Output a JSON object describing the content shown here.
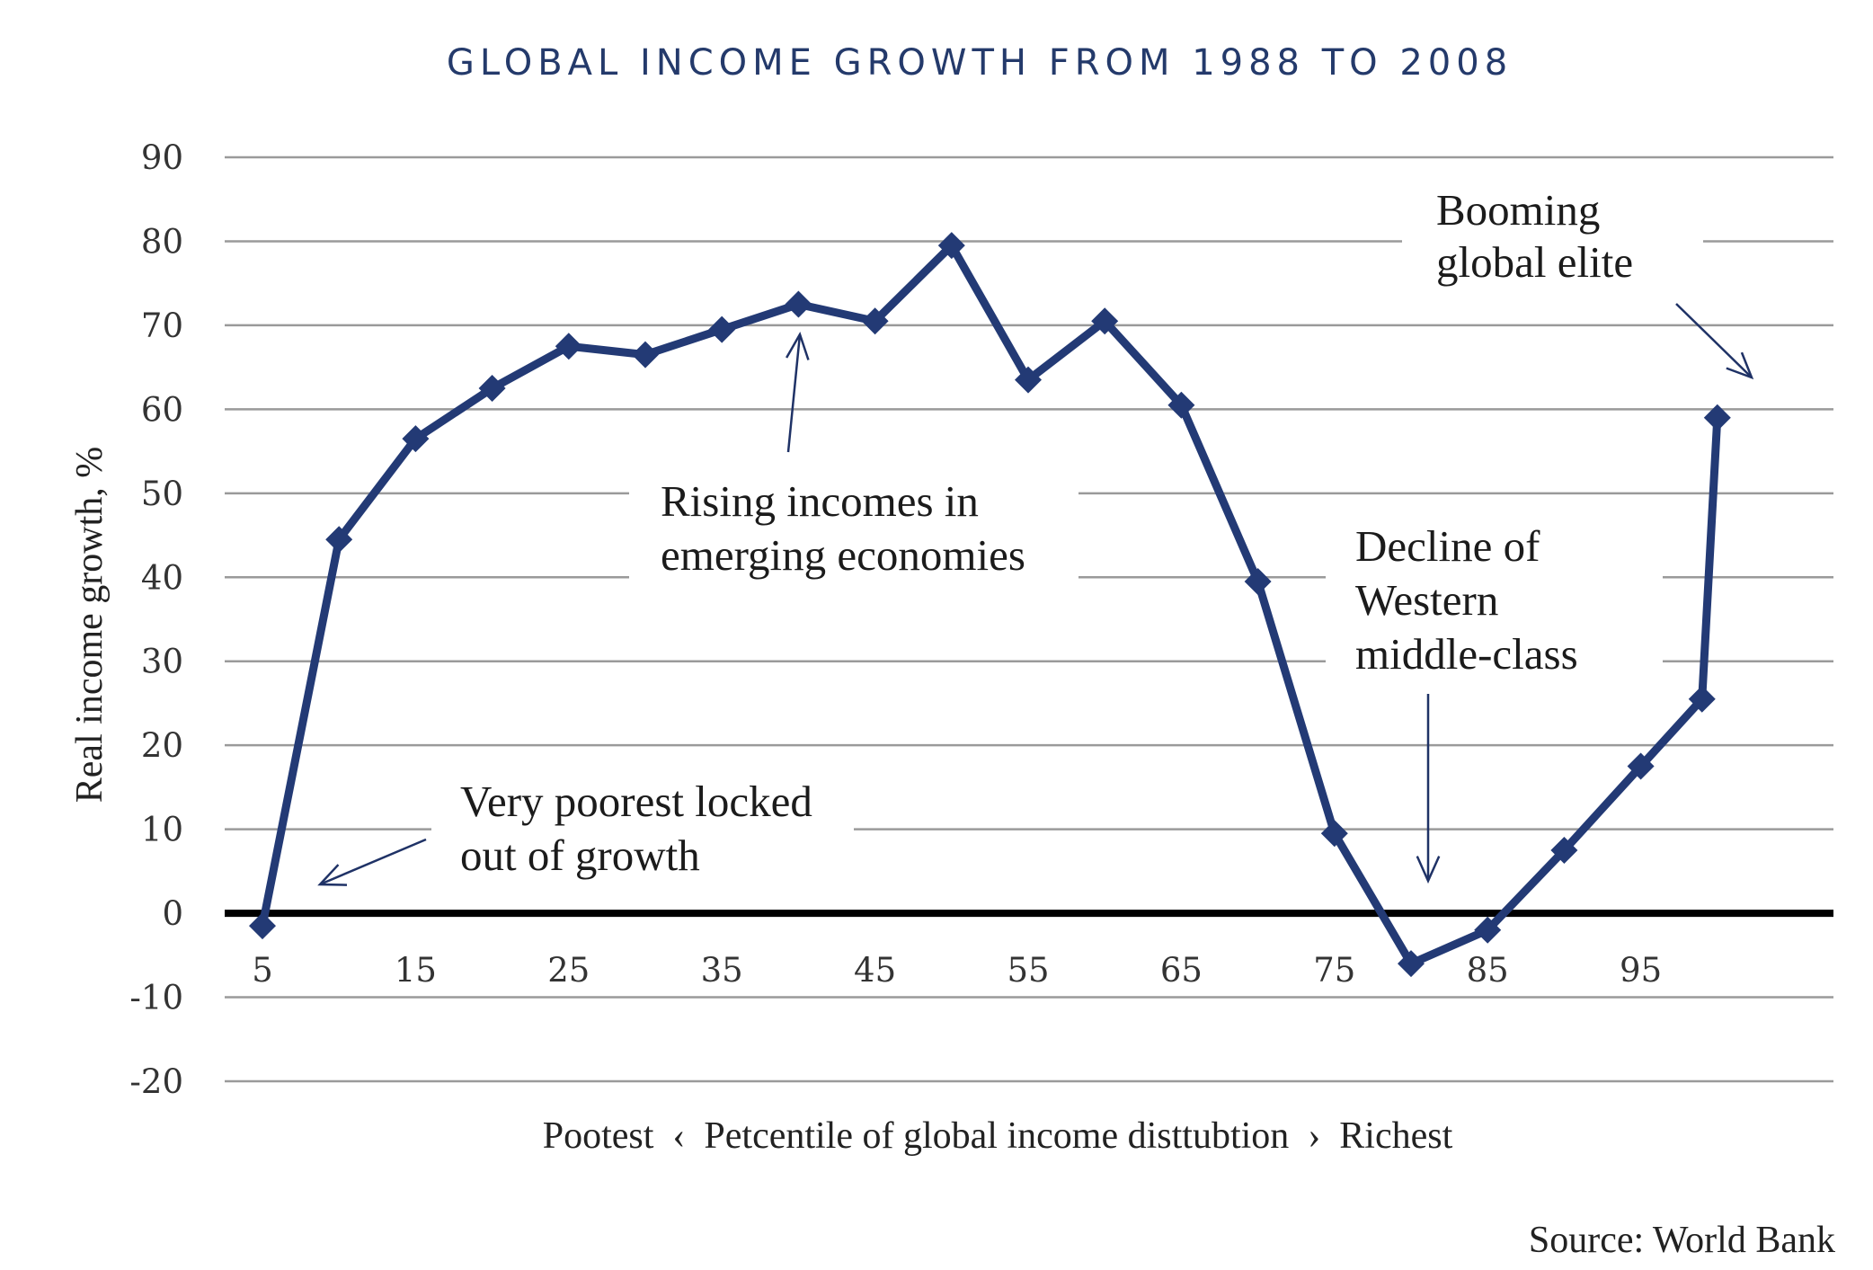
{
  "chart_data": {
    "type": "line",
    "title": "GLOBAL INCOME GROWTH FROM 1988 TO 2008",
    "xlabel": "Pootest  ‹  Petcentile of global income disttubtion  ›  Richest",
    "ylabel": "Real income growth, %",
    "ylim": [
      -20,
      90
    ],
    "yticks": [
      90,
      80,
      70,
      60,
      50,
      40,
      30,
      20,
      10,
      0,
      -10,
      -20
    ],
    "xticks": [
      "5",
      "15",
      "25",
      "35",
      "45",
      "55",
      "65",
      "75",
      "85",
      "95"
    ],
    "grid": true,
    "series": [
      {
        "color": "#233a75",
        "marker": "diamond",
        "x": [
          5,
          10,
          15,
          20,
          25,
          30,
          35,
          40,
          45,
          50,
          55,
          60,
          65,
          70,
          75,
          80,
          85,
          90,
          95,
          99,
          100
        ],
        "y": [
          -1.5,
          44.5,
          56.5,
          62.5,
          67.5,
          66.5,
          69.5,
          72.5,
          70.5,
          79.5,
          63.5,
          70.5,
          60.5,
          39.5,
          9.5,
          -6,
          -2,
          7.5,
          17.5,
          25.5,
          59
        ]
      }
    ],
    "annotations": [
      {
        "lines": [
          "Rising incomes in",
          "emerging economies"
        ]
      },
      {
        "lines": [
          "Very poorest locked",
          "out of growth"
        ]
      },
      {
        "lines": [
          "Decline of",
          "Western",
          "middle-class"
        ]
      },
      {
        "lines": [
          "Booming",
          "global elite"
        ]
      }
    ],
    "source": "Source: World Bank"
  }
}
